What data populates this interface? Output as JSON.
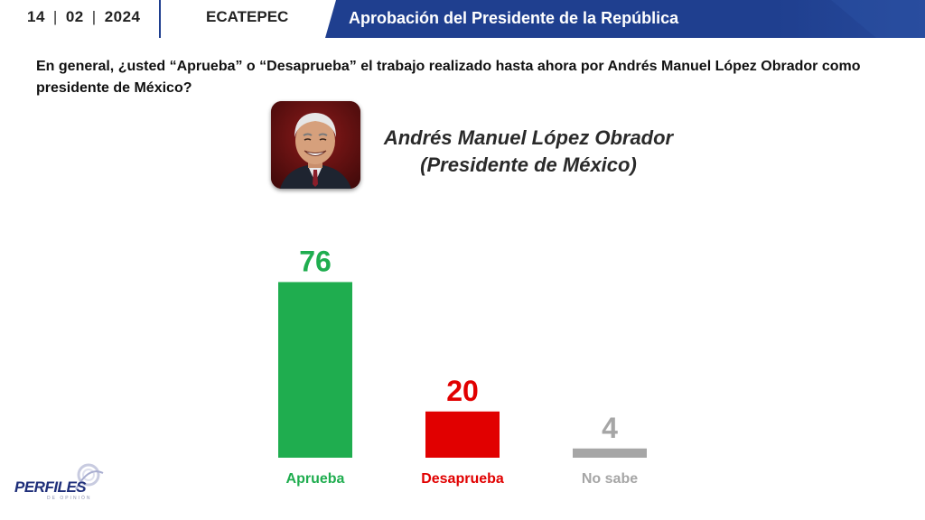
{
  "header": {
    "date_day": "14",
    "date_month": "02",
    "date_year": "2024",
    "date_separator": "|",
    "location": "ECATEPEC",
    "title": "Aprobación del Presidente de la República"
  },
  "question": "En general, ¿usted “Aprueba” o “Desaprueba” el trabajo realizado hasta ahora por Andrés Manuel López Obrador como presidente de México?",
  "person": {
    "name": "Andrés Manuel López Obrador",
    "role": "(Presidente de México)"
  },
  "logo": {
    "name": "PERFILES",
    "tagline": "DE OPINIÓN"
  },
  "colors": {
    "banner": "#1f3f8f",
    "aprueba": "#1fad4f",
    "desaprueba": "#e10000",
    "no_sabe": "#a6a6a6"
  },
  "chart_data": {
    "type": "bar",
    "categories": [
      "Aprueba",
      "Desaprueba",
      "No sabe"
    ],
    "values": [
      76,
      20,
      4
    ],
    "colors": [
      "#1fad4f",
      "#e10000",
      "#a6a6a6"
    ],
    "ylim": [
      0,
      100
    ],
    "grid": false
  }
}
